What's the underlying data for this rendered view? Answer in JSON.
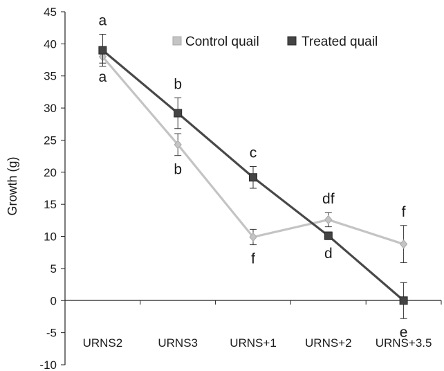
{
  "chart_data": {
    "type": "line",
    "categories": [
      "URNS2",
      "URNS3",
      "URNS+1",
      "URNS+2",
      "URNS+3.5"
    ],
    "ylabel": "Growth (g)",
    "xlabel": "",
    "ylim": [
      -10,
      45
    ],
    "yticks": [
      -10,
      -5,
      0,
      5,
      10,
      15,
      20,
      25,
      30,
      35,
      40,
      45
    ],
    "grid": false,
    "legend_position": "top-right",
    "series": [
      {
        "name": "Control quail",
        "marker": "diamond",
        "color": "#c0c0c0",
        "values": [
          38.0,
          24.3,
          9.9,
          12.6,
          8.8
        ],
        "errors": [
          1.0,
          1.7,
          1.2,
          1.1,
          2.9
        ],
        "letters": [
          "a",
          "b",
          "f",
          "df",
          "f"
        ],
        "letter_positions": [
          "below",
          "below",
          "below",
          "above",
          "above"
        ]
      },
      {
        "name": "Treated quail",
        "marker": "square",
        "color": "#4a4a4a",
        "values": [
          39.0,
          29.2,
          19.2,
          10.1,
          0.0
        ],
        "errors": [
          2.5,
          2.4,
          1.7,
          0.6,
          2.8
        ],
        "letters": [
          "a",
          "b",
          "c",
          "d",
          "e"
        ],
        "letter_positions": [
          "above",
          "above",
          "above",
          "below",
          "below"
        ]
      }
    ]
  }
}
